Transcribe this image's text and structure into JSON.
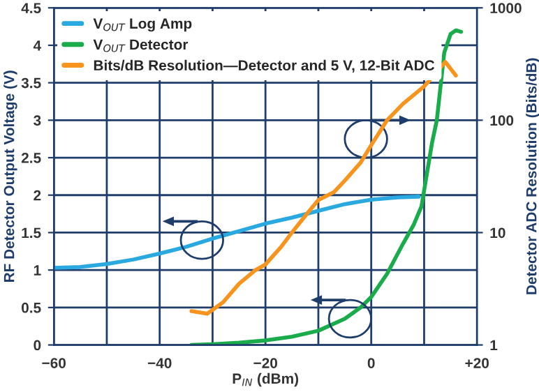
{
  "chart_data": {
    "type": "line",
    "xlabel": "P$_{IN}$ (dBm)",
    "ylabel": "RF Detector Output Voltage (V)",
    "y2label": "Detector ADC Resolution (Bits/dB)",
    "xlim": [
      -60,
      20
    ],
    "xticks": [
      {
        "value": -60,
        "label": "−60"
      },
      {
        "value": -50,
        "label": null
      },
      {
        "value": -40,
        "label": "−40"
      },
      {
        "value": -30,
        "label": null
      },
      {
        "value": -20,
        "label": "−20"
      },
      {
        "value": -10,
        "label": null
      },
      {
        "value": 0,
        "label": "0"
      },
      {
        "value": 10,
        "label": null
      },
      {
        "value": 20,
        "label": "+20"
      }
    ],
    "ylim": [
      0,
      4.5
    ],
    "yticks": [
      0,
      0.5,
      1,
      1.5,
      2,
      2.5,
      3,
      3.5,
      4,
      4.5
    ],
    "y2lim": [
      1,
      1000
    ],
    "y2ticks": [
      1,
      10,
      100,
      1000
    ],
    "log": "y2",
    "grid": true,
    "legend": "top left",
    "line_style": "solid",
    "marker": "none",
    "series": [
      {
        "name": "V$_{OUT}$ Log Amp",
        "color": "#29a9e0",
        "x": [
          -60,
          -55,
          -50,
          -45,
          -40,
          -35,
          -30,
          -25,
          -20,
          -15,
          -10,
          -5,
          0,
          5,
          9
        ],
        "values": [
          1.03,
          1.04,
          1.08,
          1.14,
          1.22,
          1.31,
          1.42,
          1.52,
          1.62,
          1.7,
          1.79,
          1.88,
          1.94,
          1.97,
          1.98
        ]
      },
      {
        "name": "V$_{OUT}$ Detector",
        "color": "#1aab4b",
        "x": [
          -34,
          -30,
          -25,
          -20,
          -15,
          -10,
          -5,
          -2,
          0,
          3,
          6,
          8,
          9.5,
          10.3,
          11.5,
          12.4,
          13.8,
          15,
          16,
          17
        ],
        "values": [
          0.0,
          0.01,
          0.03,
          0.06,
          0.11,
          0.19,
          0.35,
          0.5,
          0.64,
          0.95,
          1.35,
          1.6,
          1.85,
          2.19,
          2.7,
          3.0,
          3.9,
          4.15,
          4.2,
          4.18
        ]
      },
      {
        "name": "Bits/dB Resolution—Detector and 5 V, 12-Bit ADC",
        "color": "#f7941d",
        "axis": "y2",
        "x": [
          -34,
          -31,
          -28,
          -25,
          -22,
          -20,
          -17,
          -15,
          -12,
          -10,
          -7,
          -5,
          -2,
          0,
          3,
          6,
          10,
          14,
          16
        ],
        "values": [
          2.0,
          1.9,
          2.4,
          3.5,
          4.6,
          5.2,
          7.5,
          10,
          15,
          19.5,
          23,
          29,
          42,
          60,
          100,
          140,
          200,
          330,
          250
        ]
      }
    ]
  }
}
